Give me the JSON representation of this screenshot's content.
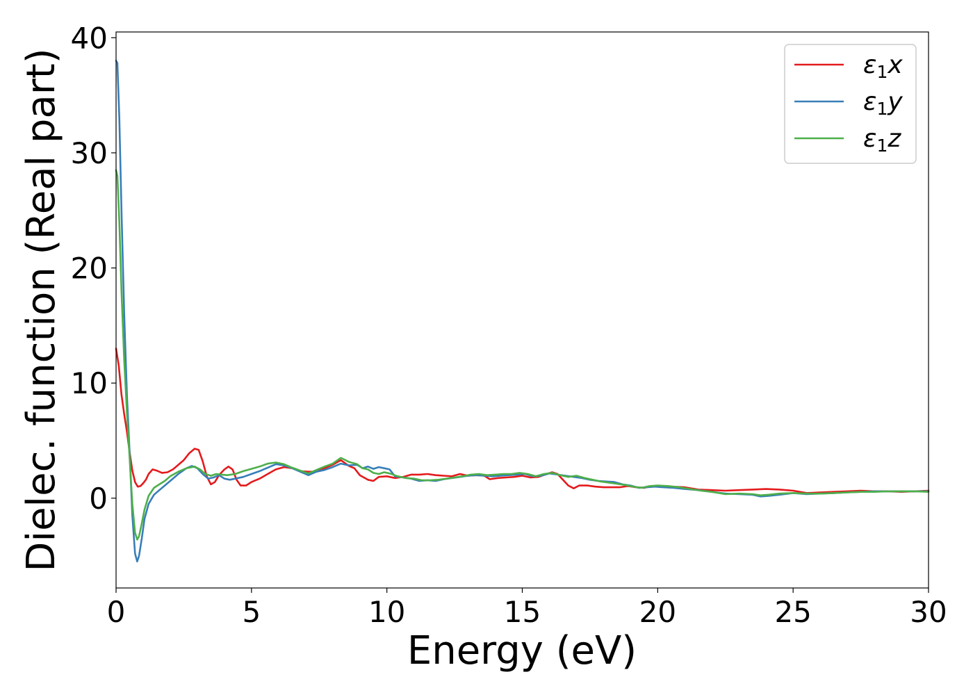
{
  "chart_data": {
    "type": "line",
    "title": "",
    "xlabel": "Energy (eV)",
    "ylabel": "Dielec. function (Real part)",
    "xlim": [
      0,
      30
    ],
    "ylim": [
      -7.8,
      40.5
    ],
    "xticks": [
      0,
      5,
      10,
      15,
      20,
      25,
      30
    ],
    "yticks": [
      0,
      10,
      20,
      30,
      40
    ],
    "xtick_labels": [
      "0",
      "5",
      "10",
      "15",
      "20",
      "25",
      "30"
    ],
    "ytick_labels": [
      "0",
      "10",
      "20",
      "30",
      "40"
    ],
    "grid": false,
    "legend_position": "top-right",
    "series": [
      {
        "name": "ε1x",
        "legend_main": "ε",
        "legend_sub": "1",
        "legend_suffix": "x",
        "color": "#e41a1c",
        "points": [
          [
            0,
            13
          ],
          [
            0.1,
            11.5
          ],
          [
            0.2,
            9
          ],
          [
            0.3,
            7.3
          ],
          [
            0.4,
            5.8
          ],
          [
            0.5,
            4
          ],
          [
            0.6,
            2.4
          ],
          [
            0.7,
            1.4
          ],
          [
            0.8,
            1
          ],
          [
            0.9,
            1.05
          ],
          [
            1.0,
            1.3
          ],
          [
            1.1,
            1.6
          ],
          [
            1.2,
            2.1
          ],
          [
            1.35,
            2.5
          ],
          [
            1.5,
            2.4
          ],
          [
            1.7,
            2.2
          ],
          [
            1.9,
            2.25
          ],
          [
            2.1,
            2.5
          ],
          [
            2.3,
            2.9
          ],
          [
            2.5,
            3.3
          ],
          [
            2.7,
            3.9
          ],
          [
            2.9,
            4.3
          ],
          [
            3.05,
            4.2
          ],
          [
            3.2,
            3.2
          ],
          [
            3.35,
            1.9
          ],
          [
            3.5,
            1.2
          ],
          [
            3.65,
            1.4
          ],
          [
            3.8,
            2
          ],
          [
            4.0,
            2.5
          ],
          [
            4.15,
            2.75
          ],
          [
            4.3,
            2.5
          ],
          [
            4.45,
            1.6
          ],
          [
            4.6,
            1.1
          ],
          [
            4.8,
            1.1
          ],
          [
            5.0,
            1.4
          ],
          [
            5.3,
            1.7
          ],
          [
            5.6,
            2.1
          ],
          [
            5.9,
            2.5
          ],
          [
            6.2,
            2.7
          ],
          [
            6.5,
            2.6
          ],
          [
            6.8,
            2.35
          ],
          [
            7.1,
            2.3
          ],
          [
            7.4,
            2.3
          ],
          [
            7.7,
            2.6
          ],
          [
            8.0,
            2.9
          ],
          [
            8.3,
            3.3
          ],
          [
            8.6,
            2.8
          ],
          [
            8.8,
            2.6
          ],
          [
            9.0,
            2
          ],
          [
            9.3,
            1.6
          ],
          [
            9.5,
            1.5
          ],
          [
            9.7,
            1.85
          ],
          [
            10.0,
            1.9
          ],
          [
            10.3,
            1.75
          ],
          [
            10.6,
            1.85
          ],
          [
            10.9,
            2.05
          ],
          [
            11.2,
            2.05
          ],
          [
            11.5,
            2.1
          ],
          [
            11.8,
            2
          ],
          [
            12.1,
            1.95
          ],
          [
            12.4,
            1.9
          ],
          [
            12.7,
            2.1
          ],
          [
            13.0,
            1.95
          ],
          [
            13.3,
            2
          ],
          [
            13.6,
            1.95
          ],
          [
            13.8,
            1.65
          ],
          [
            14.1,
            1.75
          ],
          [
            14.4,
            1.8
          ],
          [
            14.7,
            1.85
          ],
          [
            15.0,
            1.95
          ],
          [
            15.3,
            1.8
          ],
          [
            15.6,
            1.85
          ],
          [
            15.9,
            2.1
          ],
          [
            16.1,
            2.25
          ],
          [
            16.3,
            2.1
          ],
          [
            16.5,
            1.6
          ],
          [
            16.7,
            1.1
          ],
          [
            16.9,
            0.85
          ],
          [
            17.1,
            1.1
          ],
          [
            17.4,
            1.1
          ],
          [
            17.7,
            1
          ],
          [
            18.0,
            0.95
          ],
          [
            18.3,
            0.95
          ],
          [
            18.6,
            0.95
          ],
          [
            18.9,
            1.05
          ],
          [
            19.2,
            0.95
          ],
          [
            19.5,
            0.9
          ],
          [
            19.8,
            1.05
          ],
          [
            20.1,
            1.05
          ],
          [
            20.5,
            1
          ],
          [
            21.0,
            0.95
          ],
          [
            21.5,
            0.75
          ],
          [
            22.0,
            0.7
          ],
          [
            22.5,
            0.65
          ],
          [
            23.0,
            0.7
          ],
          [
            23.5,
            0.75
          ],
          [
            24.0,
            0.8
          ],
          [
            24.5,
            0.75
          ],
          [
            25.0,
            0.65
          ],
          [
            25.5,
            0.45
          ],
          [
            26.0,
            0.5
          ],
          [
            26.5,
            0.55
          ],
          [
            27.0,
            0.6
          ],
          [
            27.5,
            0.65
          ],
          [
            28.0,
            0.6
          ],
          [
            28.5,
            0.6
          ],
          [
            29.0,
            0.55
          ],
          [
            29.5,
            0.6
          ],
          [
            30.0,
            0.65
          ]
        ]
      },
      {
        "name": "ε1y",
        "legend_main": "ε",
        "legend_sub": "1",
        "legend_suffix": "y",
        "color": "#377eb8",
        "points": [
          [
            0,
            38
          ],
          [
            0.05,
            37.8
          ],
          [
            0.12,
            33
          ],
          [
            0.2,
            25
          ],
          [
            0.3,
            16
          ],
          [
            0.4,
            9
          ],
          [
            0.5,
            4
          ],
          [
            0.6,
            -1.5
          ],
          [
            0.7,
            -4.8
          ],
          [
            0.78,
            -5.5
          ],
          [
            0.85,
            -5
          ],
          [
            0.95,
            -3.5
          ],
          [
            1.05,
            -1.8
          ],
          [
            1.2,
            -0.5
          ],
          [
            1.4,
            0.3
          ],
          [
            1.6,
            0.7
          ],
          [
            1.8,
            1.1
          ],
          [
            2.0,
            1.5
          ],
          [
            2.3,
            2.1
          ],
          [
            2.6,
            2.6
          ],
          [
            2.8,
            2.8
          ],
          [
            3.0,
            2.6
          ],
          [
            3.2,
            2.1
          ],
          [
            3.4,
            1.7
          ],
          [
            3.6,
            1.8
          ],
          [
            3.8,
            2
          ],
          [
            4.0,
            1.7
          ],
          [
            4.2,
            1.6
          ],
          [
            4.4,
            1.7
          ],
          [
            4.7,
            1.85
          ],
          [
            5.0,
            2.1
          ],
          [
            5.3,
            2.35
          ],
          [
            5.6,
            2.65
          ],
          [
            5.9,
            2.95
          ],
          [
            6.2,
            2.85
          ],
          [
            6.5,
            2.6
          ],
          [
            6.8,
            2.3
          ],
          [
            7.1,
            2
          ],
          [
            7.4,
            2.3
          ],
          [
            7.7,
            2.45
          ],
          [
            8.0,
            2.7
          ],
          [
            8.3,
            3
          ],
          [
            8.6,
            2.85
          ],
          [
            8.9,
            2.9
          ],
          [
            9.1,
            2.6
          ],
          [
            9.3,
            2.75
          ],
          [
            9.5,
            2.55
          ],
          [
            9.7,
            2.7
          ],
          [
            9.9,
            2.6
          ],
          [
            10.1,
            2.5
          ],
          [
            10.3,
            1.9
          ],
          [
            10.6,
            1.8
          ],
          [
            10.9,
            1.7
          ],
          [
            11.2,
            1.5
          ],
          [
            11.5,
            1.55
          ],
          [
            11.8,
            1.5
          ],
          [
            12.1,
            1.65
          ],
          [
            12.4,
            1.75
          ],
          [
            12.7,
            1.85
          ],
          [
            13.0,
            1.95
          ],
          [
            13.3,
            2
          ],
          [
            13.6,
            1.95
          ],
          [
            13.9,
            1.9
          ],
          [
            14.2,
            1.95
          ],
          [
            14.5,
            2
          ],
          [
            14.8,
            2.05
          ],
          [
            15.1,
            2.1
          ],
          [
            15.4,
            1.9
          ],
          [
            15.7,
            1.95
          ],
          [
            16.0,
            2.15
          ],
          [
            16.3,
            2.05
          ],
          [
            16.6,
            1.95
          ],
          [
            16.9,
            1.85
          ],
          [
            17.2,
            1.75
          ],
          [
            17.5,
            1.6
          ],
          [
            17.8,
            1.5
          ],
          [
            18.1,
            1.45
          ],
          [
            18.4,
            1.4
          ],
          [
            18.7,
            1.2
          ],
          [
            19.0,
            1.1
          ],
          [
            19.3,
            0.9
          ],
          [
            19.6,
            0.95
          ],
          [
            19.9,
            1
          ],
          [
            20.2,
            0.95
          ],
          [
            20.6,
            0.9
          ],
          [
            21.0,
            0.8
          ],
          [
            21.5,
            0.7
          ],
          [
            22.0,
            0.55
          ],
          [
            22.5,
            0.4
          ],
          [
            23.0,
            0.35
          ],
          [
            23.5,
            0.3
          ],
          [
            23.8,
            0.15
          ],
          [
            24.1,
            0.2
          ],
          [
            24.5,
            0.3
          ],
          [
            25.0,
            0.45
          ],
          [
            25.5,
            0.35
          ],
          [
            26.0,
            0.4
          ],
          [
            26.5,
            0.45
          ],
          [
            27.0,
            0.5
          ],
          [
            27.5,
            0.55
          ],
          [
            28.0,
            0.6
          ],
          [
            28.5,
            0.6
          ],
          [
            29.0,
            0.6
          ],
          [
            29.5,
            0.6
          ],
          [
            30.0,
            0.6
          ]
        ]
      },
      {
        "name": "ε1z",
        "legend_main": "ε",
        "legend_sub": "1",
        "legend_suffix": "z",
        "color": "#4daf4a",
        "points": [
          [
            0,
            28.5
          ],
          [
            0.05,
            28
          ],
          [
            0.12,
            24
          ],
          [
            0.2,
            18
          ],
          [
            0.3,
            12
          ],
          [
            0.4,
            7.5
          ],
          [
            0.5,
            3.5
          ],
          [
            0.6,
            -0.5
          ],
          [
            0.7,
            -3
          ],
          [
            0.78,
            -3.6
          ],
          [
            0.85,
            -3.3
          ],
          [
            0.95,
            -2.2
          ],
          [
            1.05,
            -1
          ],
          [
            1.2,
            0.2
          ],
          [
            1.4,
            0.9
          ],
          [
            1.6,
            1.2
          ],
          [
            1.8,
            1.5
          ],
          [
            2.0,
            1.9
          ],
          [
            2.3,
            2.3
          ],
          [
            2.6,
            2.6
          ],
          [
            2.9,
            2.75
          ],
          [
            3.1,
            2.5
          ],
          [
            3.3,
            2.1
          ],
          [
            3.5,
            1.95
          ],
          [
            3.7,
            2.1
          ],
          [
            3.9,
            2.05
          ],
          [
            4.1,
            2
          ],
          [
            4.4,
            2.1
          ],
          [
            4.7,
            2.35
          ],
          [
            5.0,
            2.55
          ],
          [
            5.3,
            2.75
          ],
          [
            5.6,
            3
          ],
          [
            5.9,
            3.1
          ],
          [
            6.2,
            2.95
          ],
          [
            6.5,
            2.65
          ],
          [
            6.8,
            2.4
          ],
          [
            7.1,
            2.15
          ],
          [
            7.4,
            2.45
          ],
          [
            7.7,
            2.75
          ],
          [
            8.0,
            3
          ],
          [
            8.3,
            3.5
          ],
          [
            8.6,
            3.15
          ],
          [
            8.9,
            2.95
          ],
          [
            9.1,
            2.6
          ],
          [
            9.3,
            2.5
          ],
          [
            9.5,
            2.2
          ],
          [
            9.7,
            2.1
          ],
          [
            9.9,
            2.25
          ],
          [
            10.1,
            2.15
          ],
          [
            10.4,
            1.9
          ],
          [
            10.7,
            1.75
          ],
          [
            11.0,
            1.7
          ],
          [
            11.3,
            1.55
          ],
          [
            11.6,
            1.55
          ],
          [
            11.9,
            1.6
          ],
          [
            12.2,
            1.7
          ],
          [
            12.5,
            1.8
          ],
          [
            12.8,
            1.9
          ],
          [
            13.1,
            2.05
          ],
          [
            13.4,
            2.1
          ],
          [
            13.7,
            2
          ],
          [
            14.0,
            2.05
          ],
          [
            14.3,
            2.1
          ],
          [
            14.6,
            2.1
          ],
          [
            14.9,
            2.2
          ],
          [
            15.2,
            2.1
          ],
          [
            15.5,
            1.9
          ],
          [
            15.8,
            2.1
          ],
          [
            16.1,
            2.2
          ],
          [
            16.4,
            2
          ],
          [
            16.7,
            1.85
          ],
          [
            17.0,
            1.95
          ],
          [
            17.3,
            1.75
          ],
          [
            17.6,
            1.6
          ],
          [
            17.9,
            1.45
          ],
          [
            18.2,
            1.35
          ],
          [
            18.5,
            1.25
          ],
          [
            18.8,
            1.15
          ],
          [
            19.1,
            1
          ],
          [
            19.4,
            0.9
          ],
          [
            19.7,
            1.05
          ],
          [
            20.0,
            1.1
          ],
          [
            20.4,
            1.05
          ],
          [
            20.8,
            0.95
          ],
          [
            21.2,
            0.8
          ],
          [
            21.6,
            0.65
          ],
          [
            22.0,
            0.55
          ],
          [
            22.5,
            0.35
          ],
          [
            23.0,
            0.4
          ],
          [
            23.5,
            0.35
          ],
          [
            23.8,
            0.25
          ],
          [
            24.1,
            0.3
          ],
          [
            24.5,
            0.4
          ],
          [
            25.0,
            0.45
          ],
          [
            25.5,
            0.4
          ],
          [
            26.0,
            0.4
          ],
          [
            26.5,
            0.45
          ],
          [
            27.0,
            0.5
          ],
          [
            27.5,
            0.55
          ],
          [
            28.0,
            0.55
          ],
          [
            28.5,
            0.6
          ],
          [
            29.0,
            0.6
          ],
          [
            29.5,
            0.6
          ],
          [
            30.0,
            0.55
          ]
        ]
      }
    ]
  }
}
